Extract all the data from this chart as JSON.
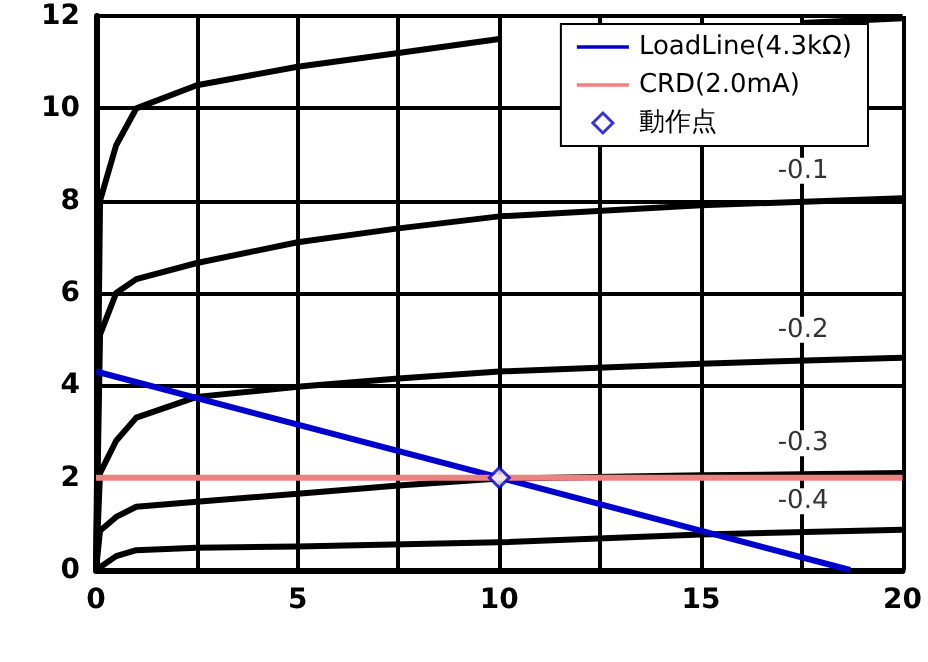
{
  "chart_data": {
    "type": "line",
    "series": [
      {
        "color": "#000000",
        "x": [
          0,
          0.1,
          0.5,
          1,
          2.5,
          5,
          7.5,
          10,
          15,
          17.5,
          20
        ],
        "values": [
          0,
          8,
          9.2,
          10,
          10.5,
          10.9,
          11.2,
          11.5,
          null,
          11.85,
          11.95
        ]
      },
      {
        "color": "#000000",
        "x": [
          0,
          0.1,
          0.5,
          1,
          2.5,
          5,
          7.5,
          10,
          15,
          20
        ],
        "values": [
          0,
          5.1,
          6,
          6.3,
          6.65,
          7.1,
          7.4,
          7.66,
          7.9,
          8.05
        ]
      },
      {
        "color": "#000000",
        "x": [
          0,
          0.1,
          0.5,
          1,
          2.5,
          5,
          7.5,
          10,
          15,
          20
        ],
        "values": [
          0,
          2.1,
          2.8,
          3.3,
          3.75,
          3.97,
          4.15,
          4.3,
          4.47,
          4.6
        ]
      },
      {
        "color": "#000000",
        "x": [
          0,
          0.1,
          0.5,
          1,
          2.5,
          5,
          7.5,
          10,
          15,
          20
        ],
        "values": [
          0,
          0.85,
          1.15,
          1.37,
          1.48,
          1.65,
          1.83,
          1.98,
          2.05,
          2.1
        ]
      },
      {
        "color": "#000000",
        "x": [
          0,
          0.5,
          1,
          2.5,
          5,
          10,
          15,
          20
        ],
        "values": [
          0,
          0.3,
          0.43,
          0.48,
          0.51,
          0.6,
          0.77,
          0.87
        ]
      },
      {
        "name": "LoadLine(4.3kΩ)",
        "color": "#0000cc",
        "x": [
          0,
          18.7
        ],
        "values": [
          4.3,
          0
        ]
      },
      {
        "name": "CRD(2.0mA)",
        "color": "#f08080",
        "x": [
          0,
          20
        ],
        "values": [
          2,
          2
        ]
      },
      {
        "name": "動作点",
        "type": "scatter",
        "marker": "diamond",
        "color": "#0000cc",
        "x": [
          10
        ],
        "values": [
          2
        ]
      }
    ],
    "annotations": [
      "-0.1",
      "-0.2",
      "-0.3",
      "-0.4"
    ],
    "xlim": [
      0,
      20
    ],
    "xticks": [
      0,
      {
        "value": 2.5,
        "label": null
      },
      5,
      {
        "value": 7.5,
        "label": null
      },
      10,
      {
        "value": 12.5,
        "label": null
      },
      15,
      {
        "value": 17.5,
        "label": null
      },
      20
    ],
    "ylim": [
      0,
      12
    ],
    "yticks": [
      0,
      2,
      4,
      6,
      8,
      10,
      12
    ],
    "grid": true,
    "legend": "top right",
    "marker": "none"
  }
}
